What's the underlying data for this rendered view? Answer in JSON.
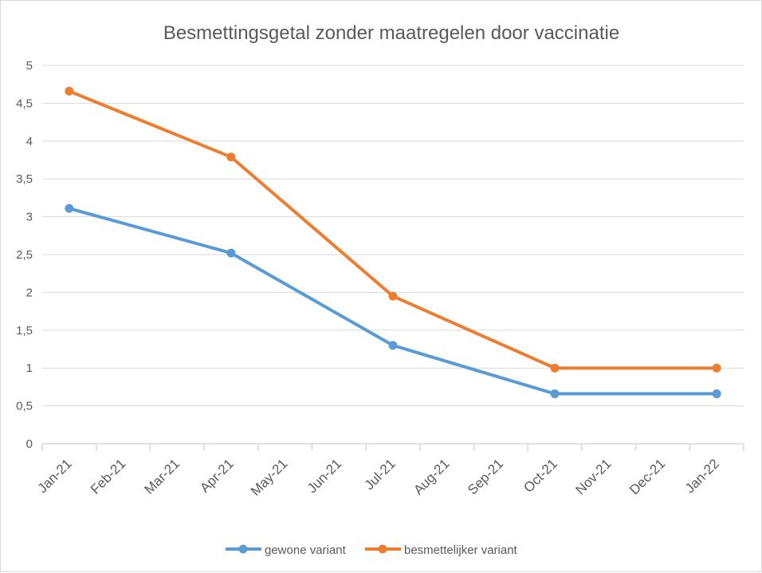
{
  "chart_data": {
    "type": "line",
    "title": "Besmettingsgetal zonder maatregelen door vaccinatie",
    "xlabel": "",
    "ylabel": "",
    "categories": [
      "Jan-21",
      "Feb-21",
      "Mar-21",
      "Apr-21",
      "May-21",
      "Jun-21",
      "Jul-21",
      "Aug-21",
      "Sep-21",
      "Oct-21",
      "Nov-21",
      "Dec-21",
      "Jan-22"
    ],
    "y_ticks": [
      "0",
      "0,5",
      "1",
      "1,5",
      "2",
      "2,5",
      "3",
      "3,5",
      "4",
      "4,5",
      "5"
    ],
    "ylim": [
      0,
      5
    ],
    "grid": true,
    "legend_position": "bottom",
    "series": [
      {
        "name": "gewone variant",
        "color": "#5b9bd5",
        "points": [
          {
            "x": "Jan-21",
            "y": 3.11
          },
          {
            "x": "Apr-21",
            "y": 2.52
          },
          {
            "x": "Jul-21",
            "y": 1.3
          },
          {
            "x": "Oct-21",
            "y": 0.66
          },
          {
            "x": "Jan-22",
            "y": 0.66
          }
        ]
      },
      {
        "name": "besmettelijker variant",
        "color": "#ed7d31",
        "points": [
          {
            "x": "Jan-21",
            "y": 4.66
          },
          {
            "x": "Apr-21",
            "y": 3.79
          },
          {
            "x": "Jul-21",
            "y": 1.95
          },
          {
            "x": "Oct-21",
            "y": 1.0
          },
          {
            "x": "Jan-22",
            "y": 1.0
          }
        ]
      }
    ]
  }
}
